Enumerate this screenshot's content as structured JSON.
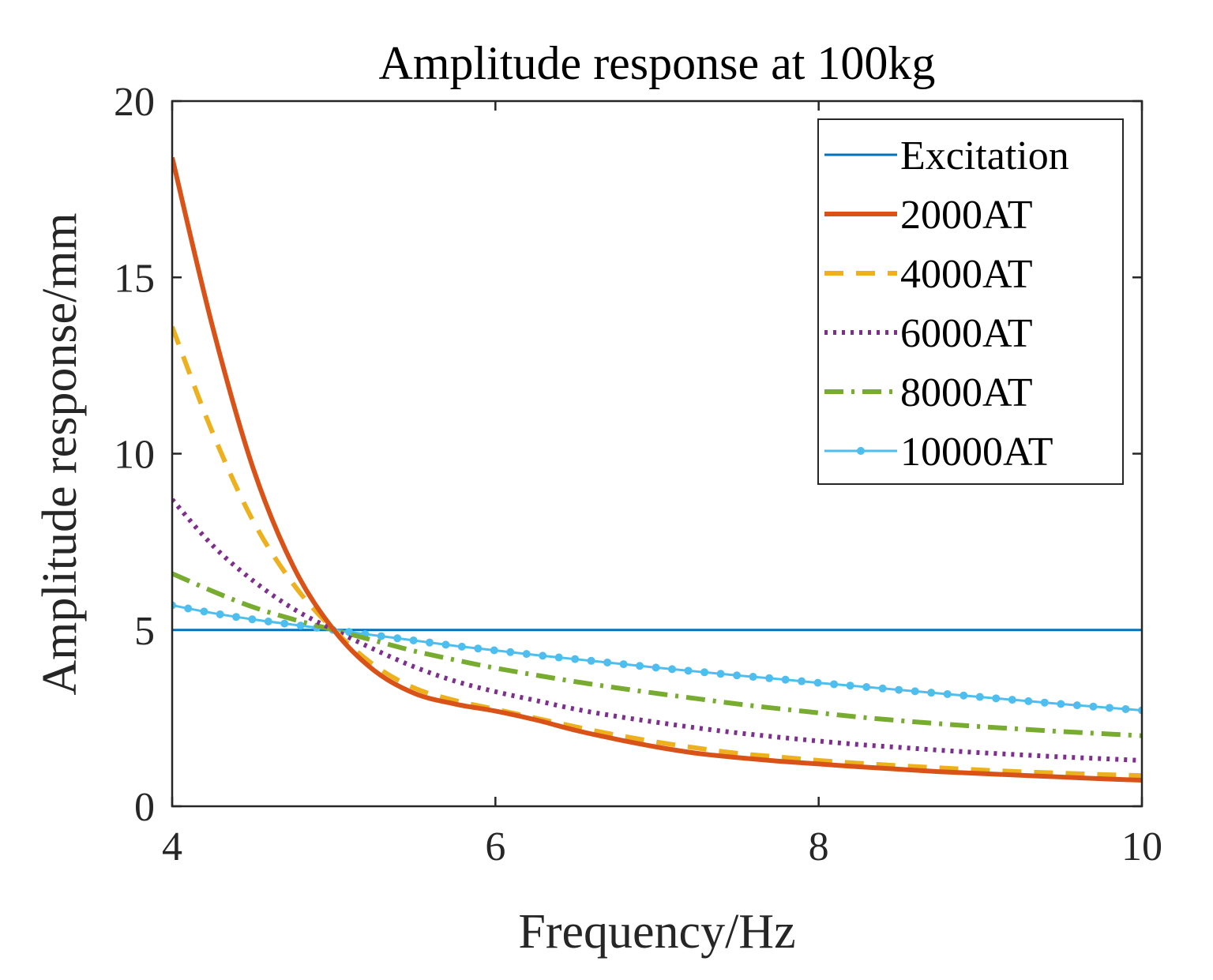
{
  "chart_data": {
    "type": "line",
    "title": "Amplitude response at 100kg",
    "xlabel": "Frequency/Hz",
    "ylabel": "Amplitude response/mm",
    "xlim": [
      4,
      10
    ],
    "ylim": [
      0,
      20
    ],
    "xticks": [
      4,
      6,
      8,
      10
    ],
    "yticks": [
      0,
      5,
      10,
      15,
      20
    ],
    "grid": false,
    "legend_position": "top-right",
    "x": [
      4.0,
      4.25,
      4.5,
      4.75,
      5.0,
      5.25,
      5.5,
      5.75,
      6.0,
      6.25,
      6.5,
      6.75,
      7.0,
      7.25,
      7.5,
      7.75,
      8.0,
      8.25,
      8.5,
      8.75,
      9.0,
      9.25,
      9.5,
      9.75,
      10.0
    ],
    "series": [
      {
        "name": "Excitation",
        "color": "#0072BD",
        "style": "solid",
        "width": 3,
        "values": [
          5,
          5,
          5,
          5,
          5,
          5,
          5,
          5,
          5,
          5,
          5,
          5,
          5,
          5,
          5,
          5,
          5,
          5,
          5,
          5,
          5,
          5,
          5,
          5,
          5
        ]
      },
      {
        "name": "2000AT",
        "color": "#D95319",
        "style": "solid",
        "width": 6,
        "values": [
          18.4,
          13.6,
          9.6,
          6.8,
          5.0,
          3.85,
          3.2,
          2.9,
          2.7,
          2.45,
          2.15,
          1.9,
          1.68,
          1.5,
          1.38,
          1.28,
          1.2,
          1.12,
          1.05,
          0.98,
          0.93,
          0.88,
          0.83,
          0.78,
          0.74
        ]
      },
      {
        "name": "4000AT",
        "color": "#EDB120",
        "style": "dashed",
        "width": 6,
        "values": [
          13.6,
          10.6,
          8.1,
          6.3,
          5.0,
          4.0,
          3.35,
          3.0,
          2.75,
          2.5,
          2.25,
          2.02,
          1.82,
          1.65,
          1.5,
          1.4,
          1.3,
          1.22,
          1.15,
          1.09,
          1.03,
          0.98,
          0.94,
          0.9,
          0.87
        ]
      },
      {
        "name": "6000AT",
        "color": "#7E2F8E",
        "style": "dotted",
        "width": 6,
        "values": [
          8.7,
          7.4,
          6.4,
          5.6,
          5.0,
          4.45,
          3.95,
          3.55,
          3.25,
          3.0,
          2.75,
          2.55,
          2.38,
          2.22,
          2.08,
          1.96,
          1.85,
          1.75,
          1.67,
          1.59,
          1.52,
          1.46,
          1.4,
          1.35,
          1.3
        ]
      },
      {
        "name": "8000AT",
        "color": "#77AC30",
        "style": "dashdot",
        "width": 6,
        "values": [
          6.6,
          6.1,
          5.65,
          5.3,
          5.0,
          4.7,
          4.4,
          4.15,
          3.92,
          3.72,
          3.53,
          3.36,
          3.2,
          3.05,
          2.9,
          2.77,
          2.65,
          2.53,
          2.43,
          2.34,
          2.26,
          2.19,
          2.12,
          2.06,
          2.0
        ]
      },
      {
        "name": "10000AT",
        "color": "#4DBEEE",
        "style": "solid-dots",
        "width": 3,
        "values": [
          5.7,
          5.48,
          5.3,
          5.15,
          5.0,
          4.85,
          4.7,
          4.55,
          4.42,
          4.29,
          4.17,
          4.05,
          3.93,
          3.82,
          3.71,
          3.61,
          3.5,
          3.4,
          3.3,
          3.2,
          3.1,
          3.0,
          2.9,
          2.81,
          2.72
        ]
      }
    ]
  }
}
